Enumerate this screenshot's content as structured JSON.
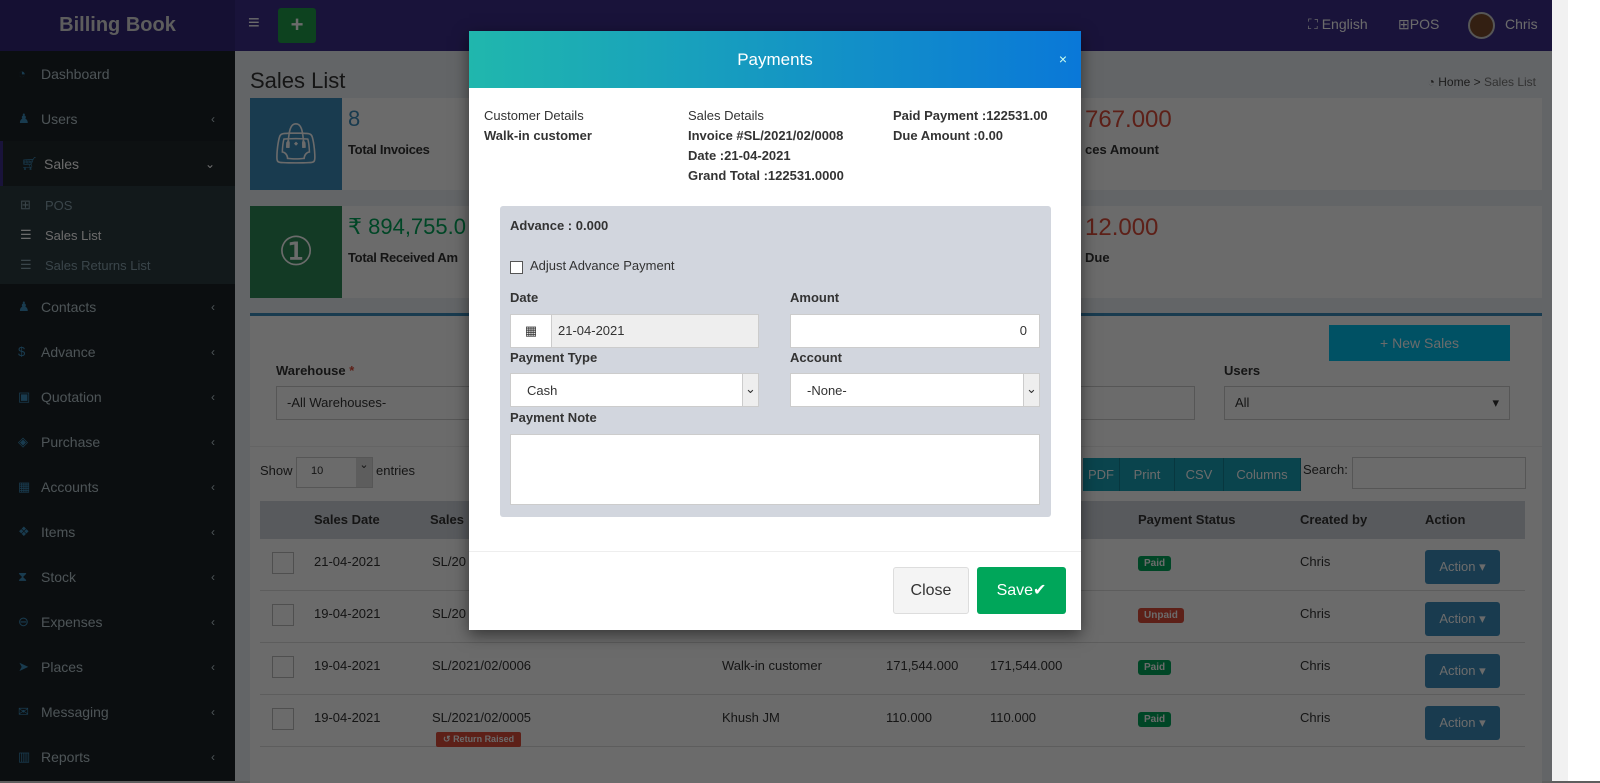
{
  "app": {
    "title": "Billing Book",
    "language": "English",
    "pos": "POS",
    "user": "Chris"
  },
  "sidebar": {
    "items": [
      {
        "label": "Dashboard",
        "icon": "dashboard-icon"
      },
      {
        "label": "Users",
        "icon": "user-plus-icon"
      },
      {
        "label": "Sales",
        "icon": "cart-icon"
      },
      {
        "label": "Contacts",
        "icon": "users-icon"
      },
      {
        "label": "Advance",
        "icon": "dollar-icon"
      },
      {
        "label": "Quotation",
        "icon": "calendar-plus-icon"
      },
      {
        "label": "Purchase",
        "icon": "cube-icon"
      },
      {
        "label": "Accounts",
        "icon": "th-large-icon"
      },
      {
        "label": "Items",
        "icon": "cubes-icon"
      },
      {
        "label": "Stock",
        "icon": "hourglass-icon"
      },
      {
        "label": "Expenses",
        "icon": "minus-circle-icon"
      },
      {
        "label": "Places",
        "icon": "paper-plane-icon"
      },
      {
        "label": "Messaging",
        "icon": "envelope-icon"
      },
      {
        "label": "Reports",
        "icon": "bar-chart-icon"
      }
    ],
    "sales_sub": [
      {
        "label": "POS"
      },
      {
        "label": "Sales List"
      },
      {
        "label": "Sales Returns List"
      }
    ]
  },
  "page": {
    "title": "Sales List",
    "breadcrumb": [
      "Home",
      "Sales List"
    ]
  },
  "stats": {
    "total_invoices": "8",
    "total_invoices_label": "Total Invoices",
    "invoices_amount_partial": "767.000",
    "invoices_amount_label_partial": "ces Amount",
    "received": "₹ 894,755.0",
    "received_label": "Total Received Am",
    "due_partial": "12.000",
    "due_label_partial": "Due"
  },
  "filters": {
    "new_sales": "New Sales",
    "warehouse_label": "Warehouse",
    "warehouse_value": "-All Warehouses-",
    "users_label": "Users",
    "users_value": "All"
  },
  "table": {
    "show": "Show",
    "entries_value": "10",
    "entries": "entries",
    "buttons": [
      "PDF",
      "Print",
      "CSV",
      "Columns"
    ],
    "search_label": "Search:",
    "headers": [
      "Sales Date",
      "Sales",
      "Payment Status",
      "Created by",
      "Action"
    ],
    "rows": [
      {
        "date": "21-04-2021",
        "code": "SL/20",
        "customer": "",
        "total": "",
        "paid": "",
        "status": "Paid",
        "created": "Chris",
        "action": "Action"
      },
      {
        "date": "19-04-2021",
        "code": "SL/20",
        "customer": "",
        "total": "",
        "paid": "",
        "status": "Unpaid",
        "created": "Chris",
        "action": "Action"
      },
      {
        "date": "19-04-2021",
        "code": "SL/2021/02/0006",
        "customer": "Walk-in customer",
        "total": "171,544.000",
        "paid": "171,544.000",
        "status": "Paid",
        "created": "Chris",
        "action": "Action"
      },
      {
        "date": "19-04-2021",
        "code": "SL/2021/02/0005",
        "customer": "Khush JM",
        "total": "110.000",
        "paid": "110.000",
        "status": "Paid",
        "created": "Chris",
        "action": "Action",
        "tag": "Return Raised"
      }
    ]
  },
  "modal": {
    "title": "Payments",
    "close_x": "×",
    "customer_heading": "Customer Details",
    "customer": "Walk-in customer",
    "sales_heading": "Sales Details",
    "invoice": "Invoice #SL/2021/02/0008",
    "date": "Date :21-04-2021",
    "grand_total": "Grand Total :122531.0000",
    "paid": "Paid Payment :122531.00",
    "due": "Due Amount :0.00",
    "advance": "Advance : 0.000",
    "adjust_label": "Adjust Advance Payment",
    "adjust_checked": false,
    "date_label": "Date",
    "date_value": "21-04-2021",
    "amount_label": "Amount",
    "amount_value": "0",
    "payment_type_label": "Payment Type",
    "payment_type_value": "Cash",
    "account_label": "Account",
    "account_value": "-None-",
    "note_label": "Payment Note",
    "note_value": "",
    "close": "Close",
    "save": "Save"
  },
  "colors": {
    "header": "#3c2d8a",
    "sidebar": "#1a2226",
    "save": "#00a65a",
    "paid": "#00a65a",
    "unpaid": "#dd4b39",
    "action": "#3c8dbc"
  }
}
